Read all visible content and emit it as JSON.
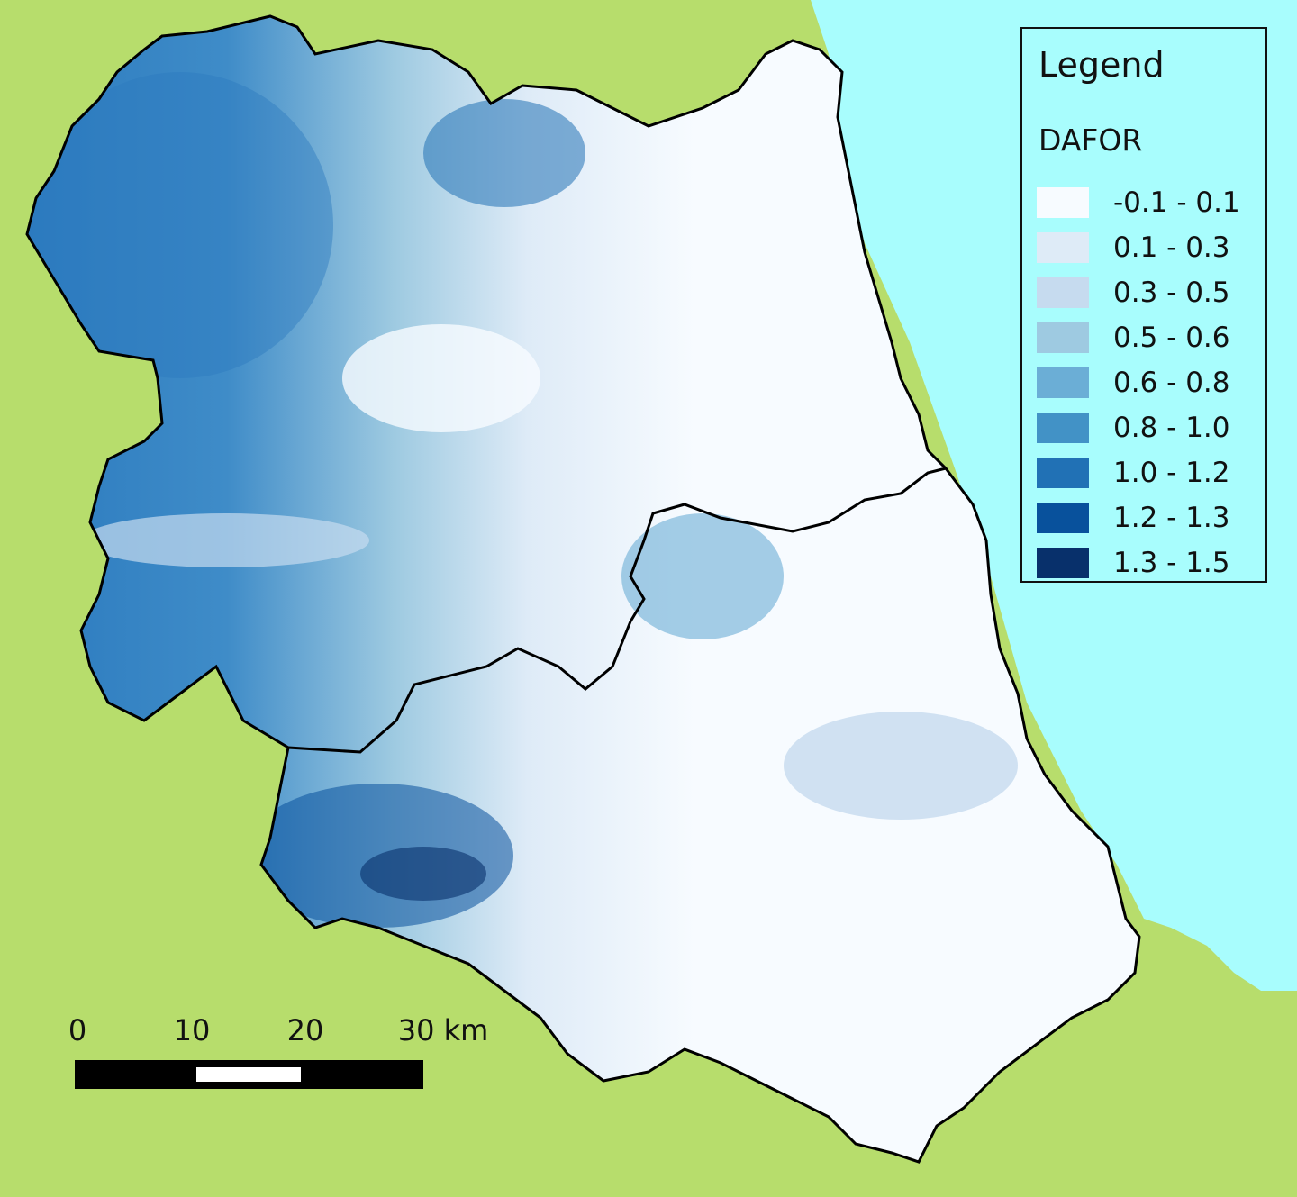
{
  "map": {
    "colors": {
      "land": "#b7dd6c",
      "sea": "#a8fdfd",
      "boundary": "#000000"
    }
  },
  "legend": {
    "title": "Legend",
    "subtitle": "DAFOR",
    "items": [
      {
        "label": "-0.1 - 0.1",
        "color": "#f7fbff"
      },
      {
        "label": "0.1 - 0.3",
        "color": "#deebf7"
      },
      {
        "label": "0.3 - 0.5",
        "color": "#c6dbef"
      },
      {
        "label": "0.5 - 0.6",
        "color": "#9ecae1"
      },
      {
        "label": "0.6 - 0.8",
        "color": "#6baed6"
      },
      {
        "label": "0.8 - 1.0",
        "color": "#4292c6"
      },
      {
        "label": "1.0 - 1.2",
        "color": "#2171b5"
      },
      {
        "label": "1.2 - 1.3",
        "color": "#08519c"
      },
      {
        "label": "1.3 - 1.5",
        "color": "#08306b"
      }
    ]
  },
  "scale_bar": {
    "ticks": [
      "0",
      "10",
      "20",
      "30 km"
    ]
  }
}
